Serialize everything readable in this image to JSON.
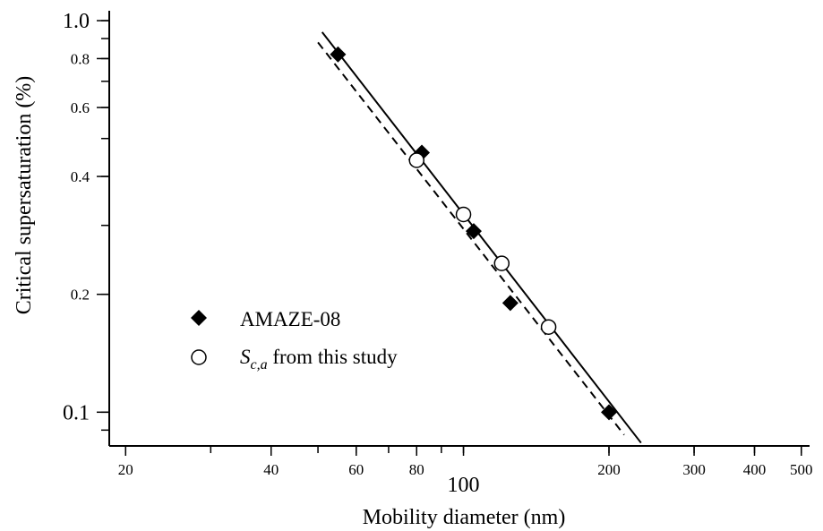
{
  "chart_data": {
    "type": "scatter",
    "title": "",
    "xlabel": "Mobility diameter (nm)",
    "ylabel": "Critical supersaturation (%)",
    "x_scale": "log",
    "y_scale": "log",
    "xlim": [
      18.5,
      520
    ],
    "ylim": [
      0.082,
      1.06
    ],
    "grid": false,
    "legend_position": "left-center",
    "x_tick_labels": [
      {
        "value": 20,
        "label": "20"
      },
      {
        "value": 40,
        "label": "40"
      },
      {
        "value": 60,
        "label": "60"
      },
      {
        "value": 80,
        "label": "80"
      },
      {
        "value": 100,
        "label": "100"
      },
      {
        "value": 200,
        "label": "200"
      },
      {
        "value": 300,
        "label": "300"
      },
      {
        "value": 400,
        "label": "400"
      },
      {
        "value": 500,
        "label": "500"
      }
    ],
    "y_tick_labels": [
      {
        "value": 0.1,
        "label": "0.1"
      },
      {
        "value": 0.2,
        "label": "0.2"
      },
      {
        "value": 0.4,
        "label": "0.4"
      },
      {
        "value": 0.6,
        "label": "0.6"
      },
      {
        "value": 0.8,
        "label": "0.8"
      },
      {
        "value": 1.0,
        "label": "1.0"
      }
    ],
    "series": [
      {
        "name": "AMAZE-08",
        "marker": "filled-diamond",
        "x": [
          55,
          82,
          105,
          125,
          200
        ],
        "y": [
          0.82,
          0.46,
          0.29,
          0.19,
          0.1
        ]
      },
      {
        "name": "S_c,a from this study",
        "name_parts": {
          "symbol": "S",
          "subscript": "c,a",
          "rest": " from this study"
        },
        "marker": "open-circle",
        "x": [
          80,
          100,
          120,
          150
        ],
        "y": [
          0.44,
          0.32,
          0.24,
          0.165
        ]
      }
    ],
    "lines": [
      {
        "style": "solid",
        "x": [
          51,
          233
        ],
        "y": [
          0.935,
          0.0835
        ]
      },
      {
        "style": "dashed",
        "x": [
          50,
          215
        ],
        "y": [
          0.88,
          0.0875
        ]
      }
    ],
    "colors": {
      "foreground": "#000000",
      "background": "#ffffff"
    }
  }
}
